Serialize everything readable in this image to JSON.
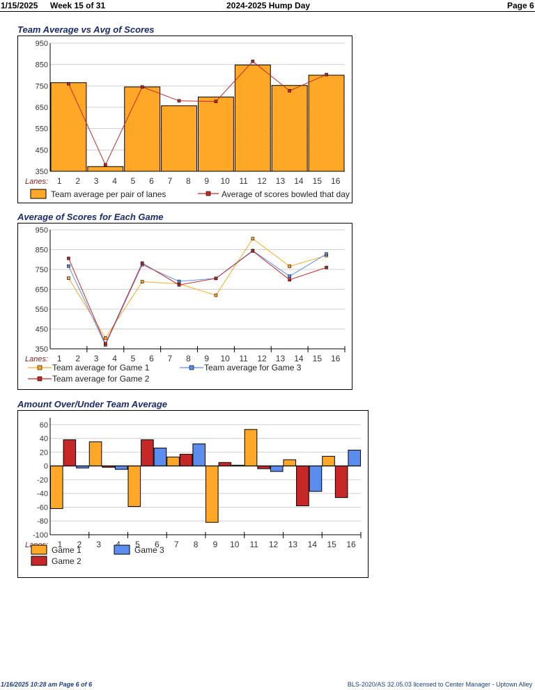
{
  "header": {
    "date": "1/15/2025",
    "week": "Week 15 of 31",
    "title": "2024-2025 Hump Day",
    "page": "Page 6"
  },
  "footer": {
    "printed": "1/16/2025  10:28 am  Page 6 of 6",
    "license": "BLS-2020/AS 32.05.03 licensed to Center Manager - Uptown Alley"
  },
  "colors": {
    "orange": "#ffa726",
    "red": "#c62828",
    "blue": "#5b8def",
    "title": "#1a2a6c",
    "lanes": "#8b1a1a"
  },
  "chart_data": [
    {
      "type": "bar",
      "title": "Team Average vs Avg of Scores",
      "axis_label": "Lanes:",
      "lane_ticks": [
        "1",
        "2",
        "3",
        "4",
        "5",
        "6",
        "7",
        "8",
        "9",
        "10",
        "11",
        "12",
        "13",
        "14",
        "15",
        "16"
      ],
      "ylim": [
        350,
        950
      ],
      "yticks": [
        350,
        450,
        550,
        650,
        750,
        850,
        950
      ],
      "bars": [
        {
          "lanes": "1-2",
          "value": 765
        },
        {
          "lanes": "3-4",
          "value": 372
        },
        {
          "lanes": "5-6",
          "value": 745
        },
        {
          "lanes": "7-8",
          "value": 657
        },
        {
          "lanes": "9-10",
          "value": 698
        },
        {
          "lanes": "11-12",
          "value": 848
        },
        {
          "lanes": "13-14",
          "value": 752
        },
        {
          "lanes": "15-16",
          "value": 800
        }
      ],
      "line": [
        760,
        380,
        745,
        680,
        677,
        865,
        727,
        803
      ],
      "legend": [
        {
          "label": "Team average per pair of lanes",
          "kind": "box"
        },
        {
          "label": "Average of scores bowled that day",
          "kind": "line"
        }
      ]
    },
    {
      "type": "line",
      "title": "Average of Scores for Each Game",
      "axis_label": "Lanes:",
      "lane_ticks": [
        "1",
        "2",
        "3",
        "4",
        "5",
        "6",
        "7",
        "8",
        "9",
        "10",
        "11",
        "12",
        "13",
        "14",
        "15",
        "16"
      ],
      "ylim": [
        350,
        950
      ],
      "yticks": [
        350,
        450,
        550,
        650,
        750,
        850,
        950
      ],
      "series": [
        {
          "name": "Team average for Game 1",
          "values": [
            706,
            405,
            688,
            677,
            620,
            905,
            766,
            820
          ]
        },
        {
          "name": "Team average for Game 2",
          "values": [
            806,
            375,
            782,
            672,
            705,
            843,
            698,
            760
          ]
        },
        {
          "name": "Team average for Game 3",
          "values": [
            767,
            370,
            774,
            690,
            705,
            845,
            716,
            828
          ]
        }
      ]
    },
    {
      "type": "bar",
      "title": "Amount Over/Under Team Average",
      "axis_label": "Lanes:",
      "lane_ticks": [
        "1",
        "2",
        "3",
        "4",
        "5",
        "6",
        "7",
        "8",
        "9",
        "10",
        "11",
        "12",
        "13",
        "14",
        "15",
        "16"
      ],
      "ylim": [
        -100,
        70
      ],
      "yticks": [
        -100,
        -80,
        -60,
        -40,
        -20,
        0,
        20,
        40,
        60
      ],
      "series": [
        {
          "name": "Game 1",
          "values": [
            -62,
            35,
            -59,
            13,
            -82,
            53,
            9,
            14
          ]
        },
        {
          "name": "Game 2",
          "values": [
            38,
            -2,
            38,
            17,
            5,
            -4,
            -58,
            -46
          ]
        },
        {
          "name": "Game 3",
          "values": [
            -3,
            -5,
            26,
            32,
            1,
            -8,
            -37,
            23
          ]
        }
      ]
    }
  ]
}
